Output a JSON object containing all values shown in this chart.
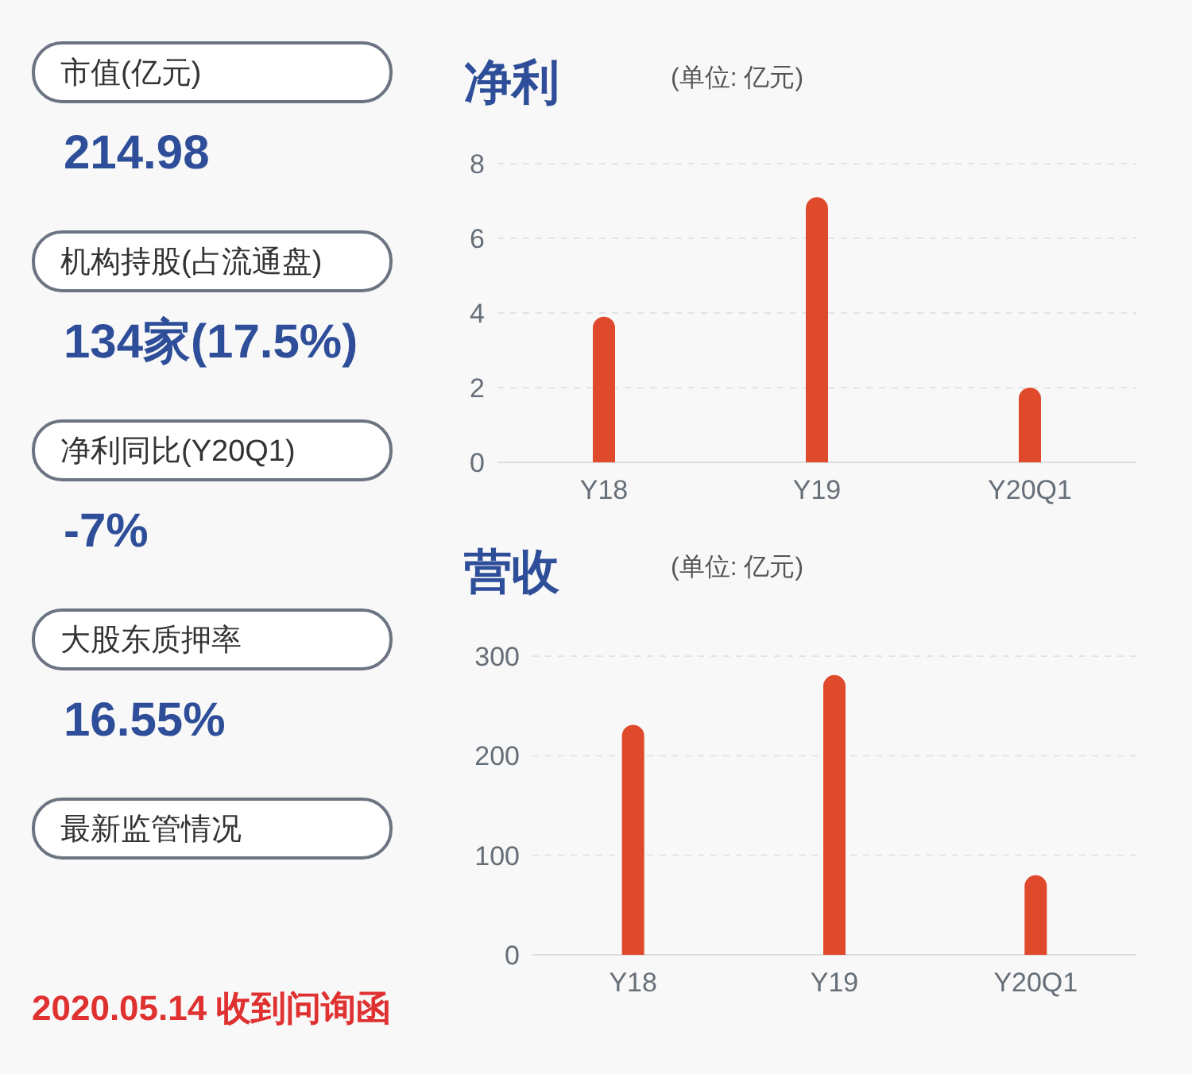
{
  "chart_data": [
    {
      "type": "other",
      "annotations": [
        "市值(亿元)",
        "214.98",
        "机构持股(占流通盘)",
        "134家(17.5%)",
        "净利同比(Y20Q1)",
        "-7%",
        "大股东质押率",
        "16.55%",
        "最新监管情况",
        "2020.05.14 收到问询函"
      ]
    },
    {
      "type": "bar",
      "title": "净利",
      "subtitle": "(单位: 亿元)",
      "categories": [
        "Y18",
        "Y19",
        "Y20Q1"
      ],
      "series": [
        {
          "color": "#e04a2c",
          "values": [
            3.9,
            7.1,
            2.0
          ]
        }
      ],
      "ylim": [
        0,
        8
      ],
      "yticks": [
        0,
        2,
        4,
        6,
        8
      ],
      "grid": "y"
    },
    {
      "type": "bar",
      "title": "营收",
      "subtitle": "(单位: 亿元)",
      "categories": [
        "Y18",
        "Y19",
        "Y20Q1"
      ],
      "series": [
        {
          "color": "#e04a2c",
          "values": [
            231,
            281,
            80
          ]
        }
      ],
      "ylim": [
        0,
        300
      ],
      "yticks": [
        0,
        100,
        200,
        300
      ],
      "grid": "y"
    }
  ]
}
